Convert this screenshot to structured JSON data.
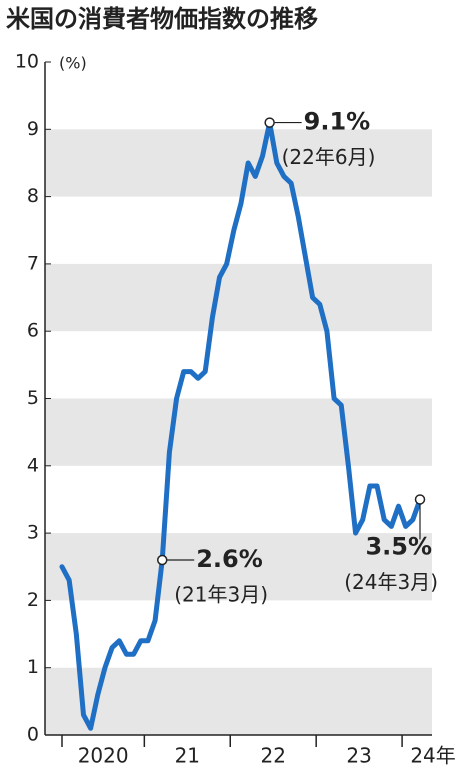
{
  "chart_data": {
    "type": "line",
    "title": "米国の消費者物価指数の推移",
    "y_unit": "(%)",
    "categories": [
      "2020",
      null,
      null,
      null,
      null,
      null,
      null,
      null,
      null,
      null,
      null,
      null,
      "21",
      null,
      null,
      null,
      null,
      null,
      null,
      null,
      null,
      null,
      null,
      null,
      "22",
      null,
      null,
      null,
      null,
      null,
      null,
      null,
      null,
      null,
      null,
      null,
      "23",
      null,
      null,
      null,
      null,
      null,
      null,
      null,
      null,
      null,
      null,
      null,
      "24年",
      null,
      null
    ],
    "series": [
      {
        "name": "消費者物価指数",
        "color": "#1f6fc5",
        "values": [
          2.5,
          2.3,
          1.5,
          0.3,
          0.1,
          0.6,
          1.0,
          1.3,
          1.4,
          1.2,
          1.2,
          1.4,
          1.4,
          1.7,
          2.6,
          4.2,
          5.0,
          5.4,
          5.4,
          5.3,
          5.4,
          6.2,
          6.8,
          7.0,
          7.5,
          7.9,
          8.5,
          8.3,
          8.6,
          9.1,
          8.5,
          8.3,
          8.2,
          7.7,
          7.1,
          6.5,
          6.4,
          6.0,
          5.0,
          4.9,
          4.0,
          3.0,
          3.2,
          3.7,
          3.7,
          3.2,
          3.1,
          3.4,
          3.1,
          3.2,
          3.5
        ],
        "value_labels": [
          null,
          null,
          null,
          null,
          null,
          null,
          null,
          null,
          null,
          null,
          null,
          null,
          null,
          null,
          "2.6%",
          null,
          null,
          null,
          null,
          null,
          null,
          null,
          null,
          null,
          null,
          null,
          null,
          null,
          null,
          "9.1%",
          null,
          null,
          null,
          null,
          null,
          null,
          null,
          null,
          null,
          null,
          null,
          null,
          null,
          null,
          null,
          null,
          null,
          null,
          null,
          null,
          "3.5%"
        ],
        "point_notes": [
          null,
          null,
          null,
          null,
          null,
          null,
          null,
          null,
          null,
          null,
          null,
          null,
          null,
          null,
          "(21年3月)",
          null,
          null,
          null,
          null,
          null,
          null,
          null,
          null,
          null,
          null,
          null,
          null,
          null,
          null,
          "(22年6月)",
          null,
          null,
          null,
          null,
          null,
          null,
          null,
          null,
          null,
          null,
          null,
          null,
          null,
          null,
          null,
          null,
          null,
          null,
          null,
          null,
          "(24年3月)"
        ]
      }
    ],
    "ylim": [
      0,
      10
    ],
    "yticks": [
      0,
      1,
      2,
      3,
      4,
      5,
      6,
      7,
      8,
      9,
      10
    ],
    "banded_grid": true
  }
}
